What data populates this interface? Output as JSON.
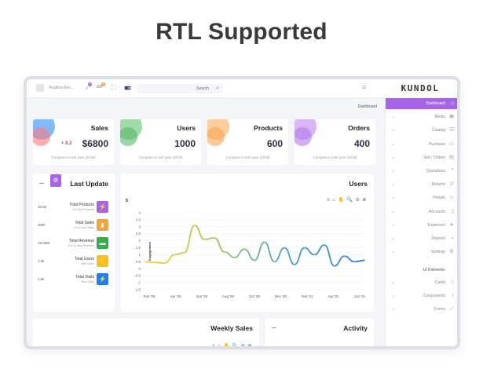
{
  "page_title": "RTL Supported",
  "topbar": {
    "user_name": "Angilina Ben...",
    "notif_badge": "3",
    "ar_label": "AR",
    "msg_badge": "5",
    "search_placeholder": "..Search",
    "logo": "KUNDOL"
  },
  "breadcrumb": "Dashboard",
  "sidebar": {
    "items": [
      {
        "label": "Dashboard",
        "icon": "home-icon",
        "glyph": "⌂",
        "active": true
      },
      {
        "label": "Media",
        "icon": "image-icon",
        "glyph": "▣"
      },
      {
        "label": "Catalog",
        "icon": "catalog-icon",
        "glyph": "☰"
      },
      {
        "label": "Purchase",
        "icon": "card-icon",
        "glyph": "▭"
      },
      {
        "label": "Sell / Orders",
        "icon": "clipboard-icon",
        "glyph": "▤"
      },
      {
        "label": "Quotations",
        "icon": "quote-icon",
        "glyph": "❞"
      },
      {
        "label": "Returns",
        "icon": "return-icon",
        "glyph": "↺"
      },
      {
        "label": "People",
        "icon": "people-icon",
        "glyph": "☺"
      },
      {
        "label": "Accounts",
        "icon": "document-icon",
        "glyph": "▯"
      },
      {
        "label": "Expenses",
        "icon": "expense-icon",
        "glyph": "➤"
      },
      {
        "label": "Reports",
        "icon": "report-icon",
        "glyph": "⌁"
      },
      {
        "label": "Settings",
        "icon": "gear-icon",
        "glyph": "⚙"
      }
    ],
    "section_label": "UI Elements",
    "ui_items": [
      {
        "label": "Cards",
        "icon": "square-icon",
        "glyph": "□"
      },
      {
        "label": "Components",
        "icon": "components-icon",
        "glyph": "⌇"
      },
      {
        "label": "Forms",
        "icon": "check-icon",
        "glyph": "✓"
      }
    ]
  },
  "stats": [
    {
      "title": "Sales",
      "value": "$6800",
      "delta": "+ 8.2",
      "compare": "Compare to last year (2019)",
      "color1": "#6aaefc",
      "color2": "#ff7a7a"
    },
    {
      "title": "Users",
      "value": "1000",
      "delta": "",
      "compare": "Compare to last year (2019)",
      "color1": "#8fd49a",
      "color2": "#58b86a"
    },
    {
      "title": "Products",
      "value": "600",
      "delta": "",
      "compare": "Compare to last year (2019)",
      "color1": "#fdc48c",
      "color2": "#f8a552"
    },
    {
      "title": "Orders",
      "value": "400",
      "delta": "",
      "compare": "Compare to last year (2019)",
      "color1": "#d3a9f7",
      "color2": "#b27ae8"
    }
  ],
  "last_update": {
    "title": "Last Update",
    "menu": "...",
    "rows": [
      {
        "value": "10.5k",
        "name": "Total Products",
        "sub": "120 New Products",
        "icon": "bolt-icon",
        "glyph": "⚡",
        "color": "#a864e8"
      },
      {
        "value": "30M",
        "name": "Total Sales",
        "sub": "15 Lk New Sales",
        "icon": "bars-icon",
        "glyph": "▮",
        "color": "#f8a23b"
      },
      {
        "value": "15,00M",
        "name": "Total Revenue",
        "sub": "10.5 Lk New Revenue",
        "icon": "card-icon",
        "glyph": "▬",
        "color": "#3aab4d"
      },
      {
        "value": "1.2k",
        "name": "Total Users",
        "sub": "New Users",
        "icon": "bolt-icon",
        "glyph": "⚡",
        "color": "#f6c21f"
      },
      {
        "value": "4.6k",
        "name": "Total Visits",
        "sub": "New Visits",
        "icon": "bolt-icon",
        "glyph": "⚡",
        "color": "#1f7ef3"
      }
    ]
  },
  "users_chart": {
    "title": "Users",
    "toolbar": "≡ ⌂ ✋ 🔍 ⊖ ⊕",
    "s_label": "$"
  },
  "chart_data": {
    "type": "line",
    "title": "Users",
    "ylabel": "Engagement",
    "xlabel": "",
    "ylim": [
      -1.5,
      4
    ],
    "yticks": [
      4,
      3.5,
      3,
      2.5,
      2,
      1.5,
      1,
      0.5,
      0,
      -0.5,
      -1,
      -1.5
    ],
    "xticks": [
      "Feb '00",
      "Apr '00",
      "Jun '00",
      "Aug '00",
      "Oct '00",
      "Dec '00",
      "Feb '01",
      "Apr '01",
      "Jun '01"
    ],
    "series": [
      {
        "values": [
          0.5,
          0.45,
          0.4,
          1.0,
          1.15,
          3.1,
          2.1,
          2.2,
          1.2,
          0.8,
          1.4,
          0.6,
          1.9,
          0.5,
          1.5,
          0.3,
          1.5,
          1.0,
          1.7,
          0.2,
          0.9,
          0.5,
          0.6
        ]
      }
    ],
    "line_colors": [
      "#f3d443",
      "#9bc65a",
      "#4a9ec9",
      "#2b7fd9"
    ]
  },
  "weekly_sales": {
    "title": "Weekly Sales",
    "toolbar": "≡ ⌂ ✋ 🔍 ⊖ ⊕"
  },
  "activity": {
    "title": "Activity",
    "menu": "..."
  }
}
